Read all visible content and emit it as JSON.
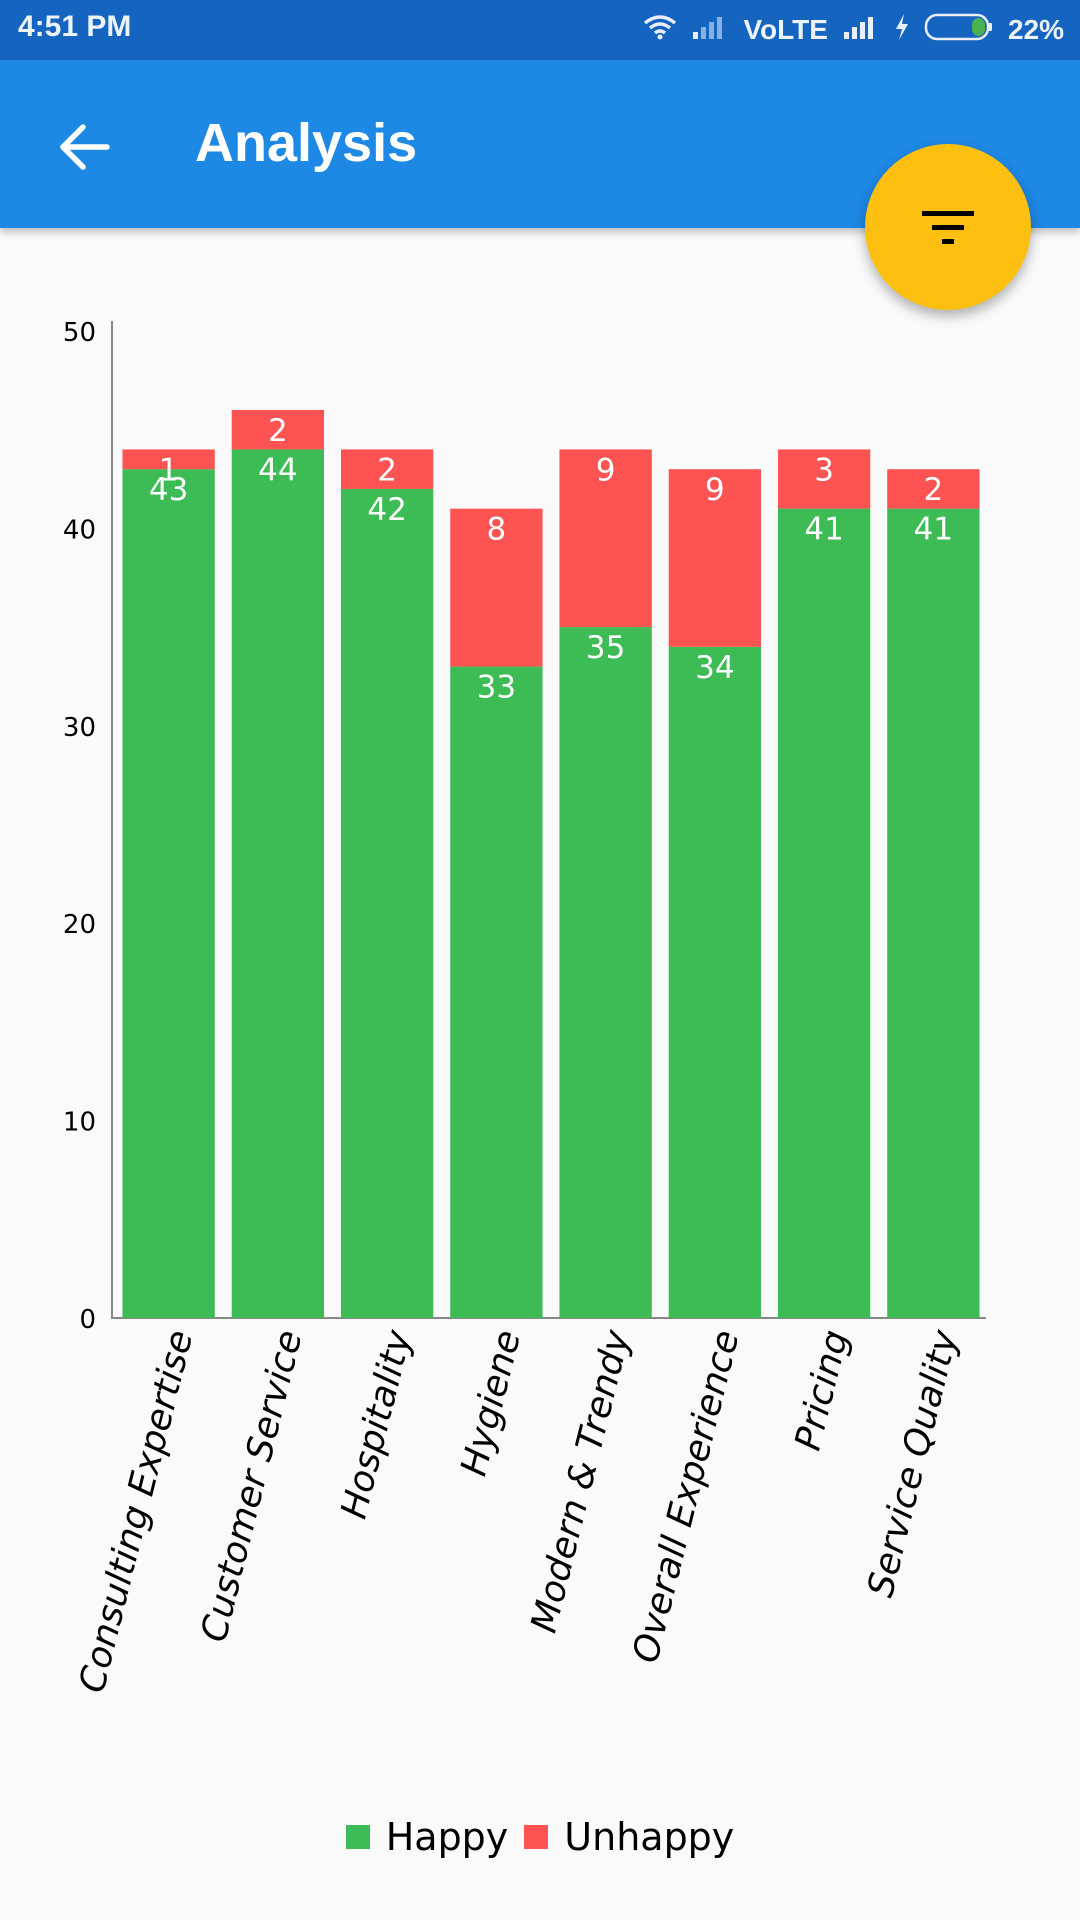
{
  "status_bar": {
    "time": "4:51 PM",
    "network": "VoLTE",
    "battery": "22%"
  },
  "app_bar": {
    "title": "Analysis",
    "back_icon": "arrow-back-icon",
    "filter_icon": "filter-icon"
  },
  "colors": {
    "primary": "#1e88e5",
    "status_bar": "#1565c0",
    "accent": "#fdc010",
    "happy": "#3dbb55",
    "unhappy": "#fd5353"
  },
  "chart_data": {
    "type": "bar",
    "stacked": true,
    "categories": [
      "Consulting Expertise",
      "Customer Service",
      "Hospitality",
      "Hygiene",
      "Modern & Trendy",
      "Overall Experience",
      "Pricing",
      "Service Quality"
    ],
    "series": [
      {
        "name": "Happy",
        "values": [
          43,
          44,
          42,
          33,
          35,
          34,
          41,
          41
        ]
      },
      {
        "name": "Unhappy",
        "values": [
          1,
          2,
          2,
          8,
          9,
          9,
          3,
          2
        ]
      }
    ],
    "yticks": [
      "0",
      "10",
      "20",
      "30",
      "40",
      "50"
    ],
    "ylim": [
      0,
      50
    ],
    "legend_position": "bottom-center",
    "grid": false
  }
}
